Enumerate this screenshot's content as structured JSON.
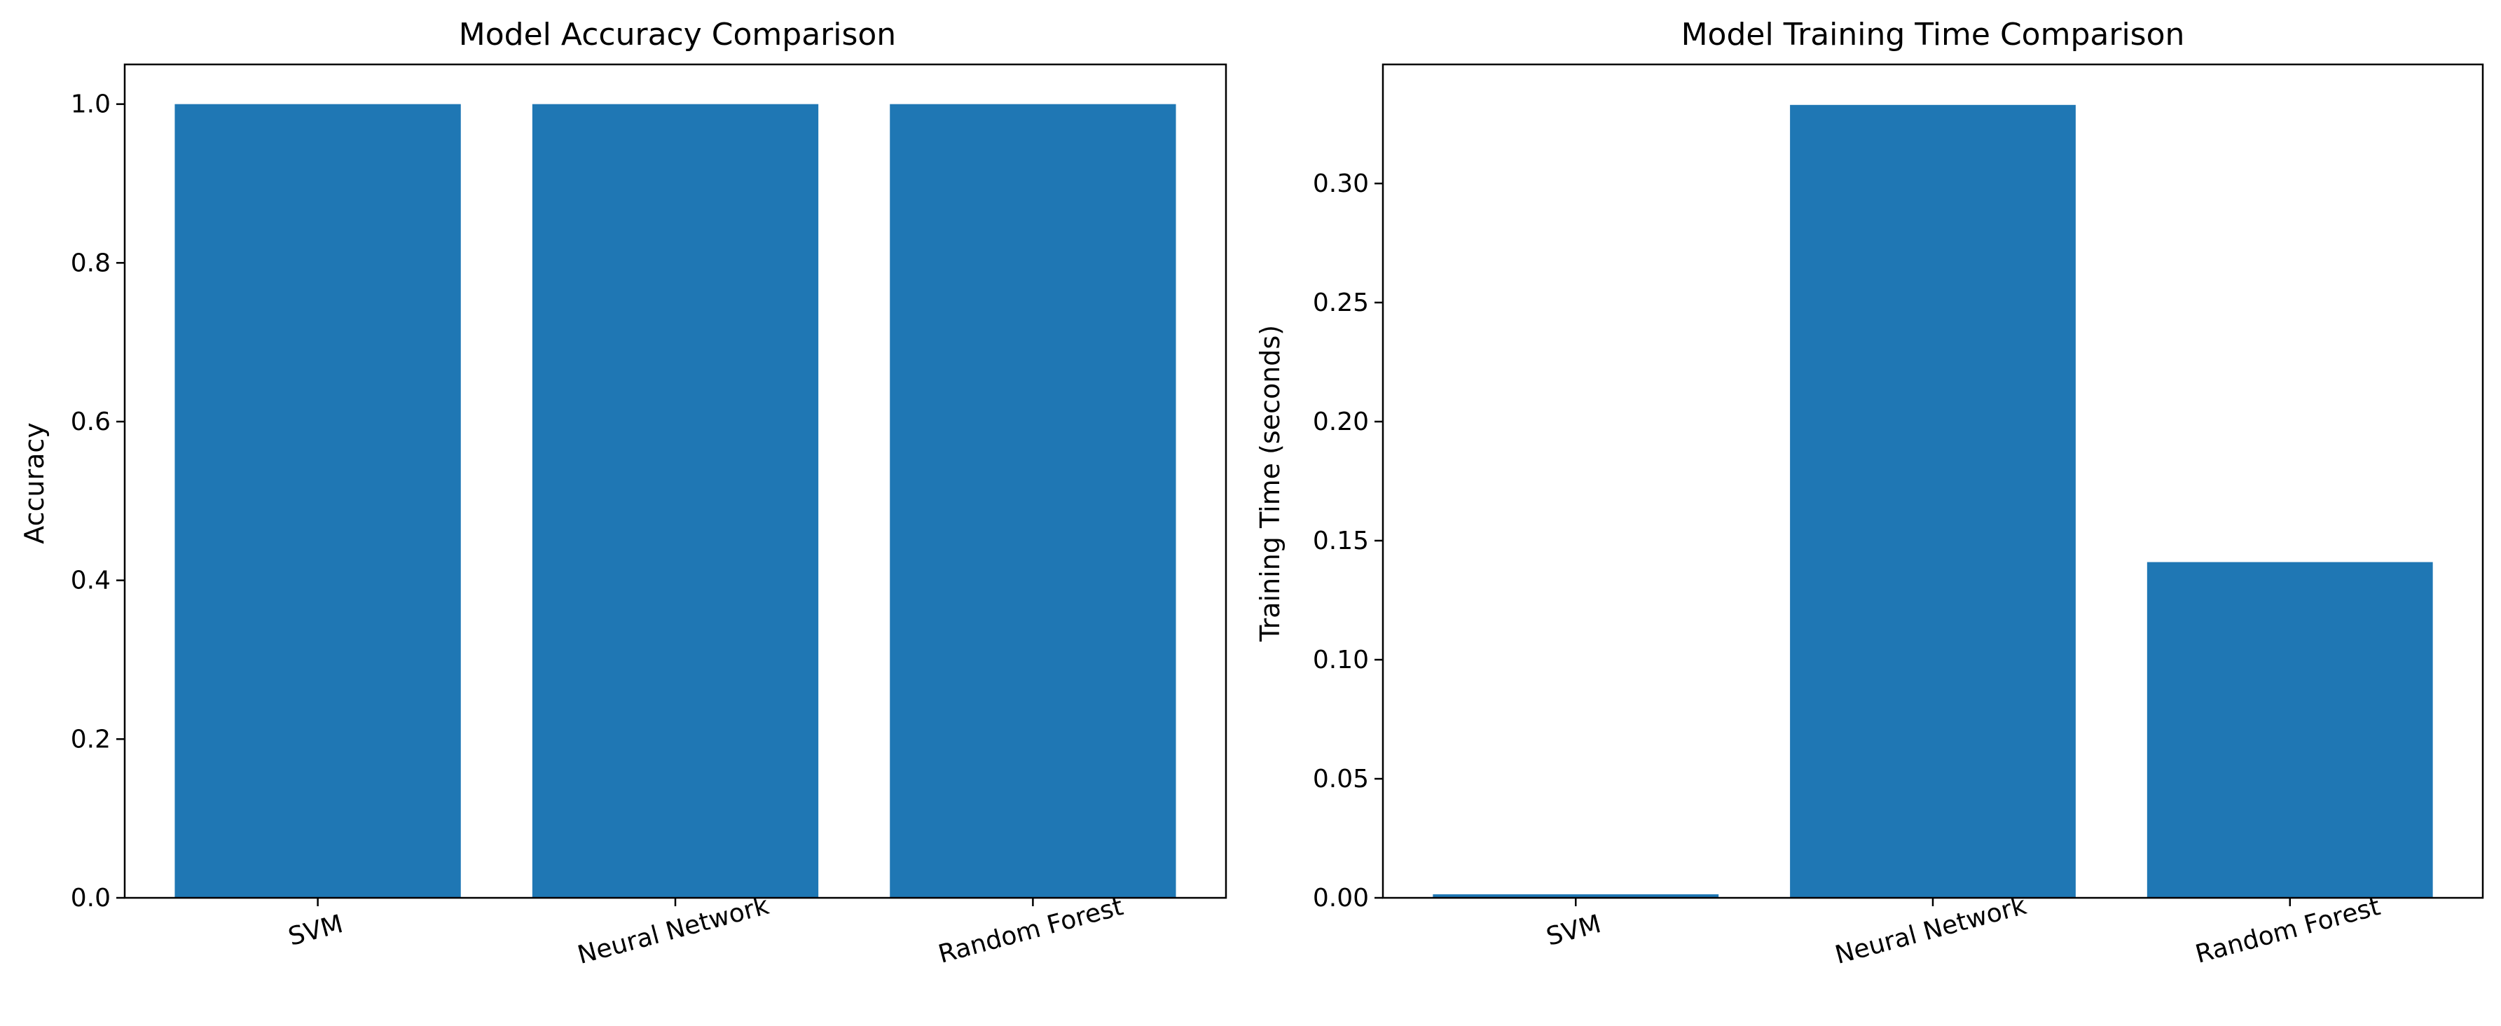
{
  "chart_data": [
    {
      "type": "bar",
      "title": "Model Accuracy Comparison",
      "xlabel": "",
      "ylabel": "Accuracy",
      "categories": [
        "SVM",
        "Neural Network",
        "Random Forest"
      ],
      "values": [
        1.0,
        1.0,
        1.0
      ],
      "ylim": [
        0,
        1.05
      ],
      "yticks": [
        "0.0",
        "0.2",
        "0.4",
        "0.6",
        "0.8",
        "1.0"
      ],
      "ytick_values": [
        0.0,
        0.2,
        0.4,
        0.6,
        0.8,
        1.0
      ],
      "bar_color": "#1f77b4",
      "grid": false,
      "xtick_rotation_deg": 15
    },
    {
      "type": "bar",
      "title": "Model Training Time Comparison",
      "xlabel": "",
      "ylabel": "Training Time (seconds)",
      "categories": [
        "SVM",
        "Neural Network",
        "Random Forest"
      ],
      "values": [
        0.0015,
        0.333,
        0.141
      ],
      "ylim": [
        0,
        0.35
      ],
      "yticks": [
        "0.00",
        "0.05",
        "0.10",
        "0.15",
        "0.20",
        "0.25",
        "0.30"
      ],
      "ytick_values": [
        0.0,
        0.05,
        0.1,
        0.15,
        0.2,
        0.25,
        0.3
      ],
      "bar_color": "#1f77b4",
      "grid": false,
      "xtick_rotation_deg": 15
    }
  ]
}
